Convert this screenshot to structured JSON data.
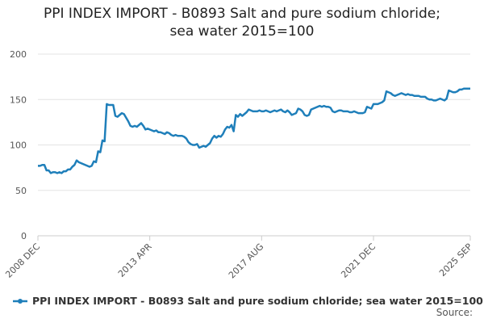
{
  "chart_data": {
    "type": "line",
    "title": "PPI INDEX IMPORT - B0893 Salt and pure sodium chloride; sea water 2015=100",
    "source": "Source:",
    "categories": [
      "2008 DEC",
      null,
      null,
      null,
      null,
      null,
      null,
      null,
      null,
      null,
      null,
      null,
      null,
      null,
      null,
      null,
      null,
      null,
      null,
      null,
      null,
      null,
      null,
      null,
      null,
      null,
      null,
      null,
      null,
      null,
      null,
      null,
      null,
      null,
      null,
      null,
      null,
      null,
      null,
      null,
      null,
      null,
      null,
      null,
      null,
      null,
      null,
      null,
      null,
      null,
      null,
      null,
      "2013 APR",
      null,
      null,
      null,
      null,
      null,
      null,
      null,
      null,
      null,
      null,
      null,
      null,
      null,
      null,
      null,
      null,
      null,
      null,
      null,
      null,
      null,
      null,
      null,
      null,
      null,
      null,
      null,
      null,
      null,
      null,
      null,
      null,
      null,
      null,
      null,
      null,
      null,
      null,
      null,
      null,
      null,
      null,
      null,
      null,
      null,
      null,
      null,
      null,
      null,
      null,
      null,
      "2017 AUG",
      null,
      null,
      null,
      null,
      null,
      null,
      null,
      null,
      null,
      null,
      null,
      null,
      null,
      null,
      null,
      null,
      null,
      null,
      null,
      null,
      null,
      null,
      null,
      null,
      null,
      null,
      null,
      null,
      null,
      null,
      null,
      null,
      null,
      null,
      null,
      null,
      null,
      null,
      null,
      null,
      null,
      null,
      null,
      null,
      null,
      null,
      null,
      null,
      null,
      null,
      null,
      "2021 DEC",
      null,
      null,
      null,
      null,
      null,
      null,
      null,
      null,
      null,
      null,
      null,
      null,
      null,
      null,
      null,
      null,
      null,
      null,
      null,
      null,
      null,
      null,
      null,
      null,
      null,
      null,
      null,
      null,
      null,
      null,
      null,
      null,
      null,
      null,
      null,
      null,
      null,
      null,
      null,
      null,
      null,
      null,
      null,
      null,
      "2025 SEP"
    ],
    "series": [
      {
        "name": "PPI INDEX IMPORT - B0893 Salt and pure sodium chloride; sea water 2015=100",
        "color": "#1f7fba",
        "values": [
          77,
          77,
          78,
          78,
          72,
          72,
          69,
          70,
          70,
          69,
          70,
          69,
          71,
          71,
          73,
          73,
          76,
          78,
          83,
          81,
          80,
          79,
          78,
          77,
          76,
          77,
          82,
          81,
          93,
          92,
          105,
          104,
          145,
          144,
          144,
          144,
          132,
          131,
          133,
          135,
          134,
          130,
          126,
          121,
          120,
          121,
          120,
          122,
          124,
          121,
          117,
          118,
          117,
          116,
          115,
          116,
          114,
          114,
          113,
          112,
          114,
          113,
          111,
          110,
          111,
          110,
          110,
          110,
          109,
          107,
          103,
          101,
          100,
          100,
          101,
          97,
          98,
          99,
          98,
          100,
          102,
          107,
          110,
          108,
          110,
          109,
          112,
          117,
          120,
          119,
          122,
          115,
          133,
          131,
          134,
          132,
          134,
          136,
          139,
          138,
          137,
          137,
          137,
          138,
          137,
          137,
          138,
          137,
          136,
          137,
          138,
          137,
          138,
          139,
          137,
          136,
          138,
          136,
          133,
          134,
          135,
          140,
          139,
          137,
          133,
          132,
          133,
          139,
          140,
          141,
          142,
          143,
          142,
          143,
          142,
          142,
          141,
          137,
          136,
          137,
          138,
          138,
          137,
          137,
          137,
          136,
          136,
          137,
          136,
          135,
          135,
          135,
          136,
          142,
          141,
          140,
          145,
          145,
          145,
          146,
          147,
          149,
          159,
          158,
          157,
          155,
          154,
          155,
          156,
          157,
          156,
          155,
          156,
          155,
          155,
          154,
          154,
          154,
          153,
          153,
          153,
          151,
          150,
          150,
          149,
          149,
          150,
          151,
          150,
          149,
          151,
          160,
          159,
          158,
          158,
          159,
          161,
          161,
          162,
          162,
          162,
          162
        ]
      }
    ],
    "ylim": [
      0,
      200
    ],
    "yticks": [
      0,
      50,
      100,
      150,
      200
    ],
    "grid": true
  }
}
